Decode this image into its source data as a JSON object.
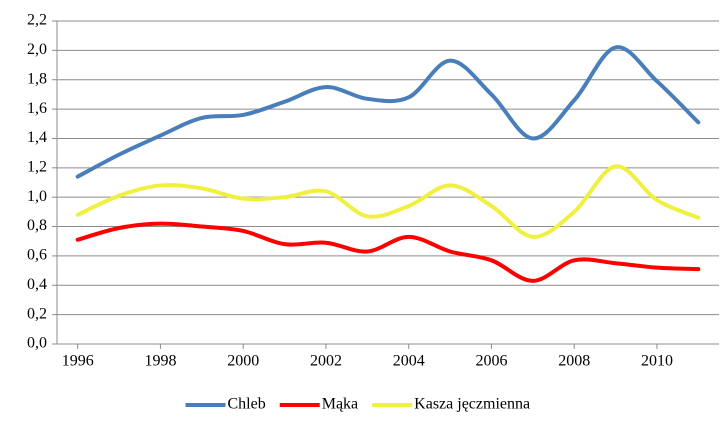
{
  "chart_data": {
    "type": "line",
    "x": [
      1996,
      1997,
      1998,
      1999,
      2000,
      2001,
      2002,
      2003,
      2004,
      2005,
      2006,
      2007,
      2008,
      2009,
      2010,
      2011
    ],
    "series": [
      {
        "name": "Chleb",
        "color": "#4a7ebb",
        "values": [
          1.14,
          1.29,
          1.42,
          1.54,
          1.56,
          1.65,
          1.75,
          1.67,
          1.68,
          1.93,
          1.7,
          1.4,
          1.66,
          2.02,
          1.79,
          1.51
        ]
      },
      {
        "name": "Mąka",
        "color": "#ff0000",
        "values": [
          0.71,
          0.79,
          0.82,
          0.8,
          0.77,
          0.68,
          0.69,
          0.63,
          0.73,
          0.63,
          0.57,
          0.43,
          0.57,
          0.55,
          0.52,
          0.51
        ]
      },
      {
        "name": "Kasza jęczmienna",
        "color": "#f0f040",
        "values": [
          0.88,
          1.01,
          1.08,
          1.06,
          0.99,
          1.0,
          1.04,
          0.87,
          0.94,
          1.08,
          0.94,
          0.73,
          0.9,
          1.21,
          0.98,
          0.86
        ]
      }
    ],
    "xlim": [
      1995.5,
      2011.5
    ],
    "xticks": [
      1996,
      1998,
      2000,
      2002,
      2004,
      2006,
      2008,
      2010
    ],
    "ylim": [
      0,
      2.2
    ],
    "yticks": [
      {
        "value": 0,
        "label": "0,0"
      },
      {
        "value": 0.2,
        "label": "0,2"
      },
      {
        "value": 0.4,
        "label": "0,4"
      },
      {
        "value": 0.6,
        "label": "0,6"
      },
      {
        "value": 0.8,
        "label": "0,8"
      },
      {
        "value": 1.0,
        "label": "1,0"
      },
      {
        "value": 1.2,
        "label": "1,2"
      },
      {
        "value": 1.4,
        "label": "1,4"
      },
      {
        "value": 1.6,
        "label": "1,6"
      },
      {
        "value": 1.8,
        "label": "1,8"
      },
      {
        "value": 2.0,
        "label": "2,0"
      },
      {
        "value": 2.2,
        "label": "2,2"
      }
    ],
    "grid": true,
    "legend": "bottom"
  }
}
